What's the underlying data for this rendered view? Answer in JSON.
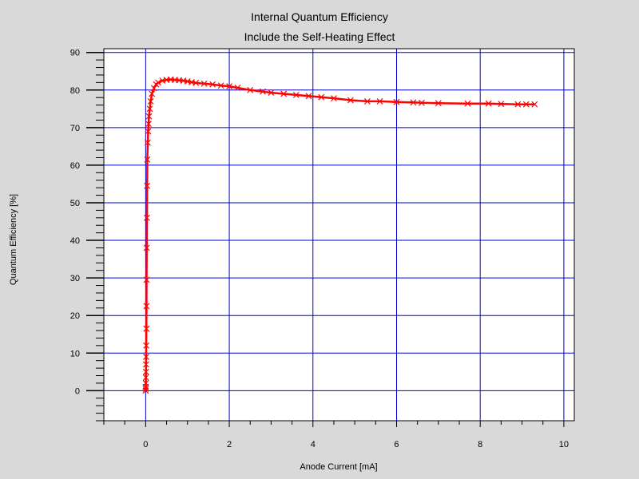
{
  "colors": {
    "background": "#d9d9d9",
    "plot_background": "#ffffff",
    "grid": "#0000cc",
    "series": "#ff0000",
    "axis": "#000000"
  },
  "chart_data": {
    "type": "line",
    "title": "Internal Quantum Efficiency",
    "subtitle": "Include the Self-Heating Effect",
    "xlabel": "Anode Current [mA]",
    "ylabel": "Quantum Efficiency [%]",
    "xlim": [
      -1,
      10.25
    ],
    "ylim": [
      -8,
      91
    ],
    "xticks": [
      0,
      2,
      4,
      6,
      8,
      10
    ],
    "yticks": [
      0,
      10,
      20,
      30,
      40,
      50,
      60,
      70,
      80,
      90
    ],
    "grid": true,
    "marker": "x",
    "series": [
      {
        "x": [
          0,
          0.001,
          0.002,
          0.004,
          0.006,
          0.008,
          0.01,
          0.012,
          0.015,
          0.018,
          0.02,
          0.022,
          0.025,
          0.03,
          0.035,
          0.04,
          0.05,
          0.06,
          0.07,
          0.08,
          0.1,
          0.12,
          0.15,
          0.2,
          0.25,
          0.3,
          0.4,
          0.5,
          0.6,
          0.7,
          0.8,
          0.9,
          1.0,
          1.1,
          1.2,
          1.4,
          1.6,
          1.8,
          2.0,
          2.2,
          2.5,
          2.8,
          3.0,
          3.3,
          3.6,
          3.9,
          4.2,
          4.5,
          4.9,
          5.3,
          5.6,
          6.0,
          6.4,
          6.6,
          7.0,
          7.7,
          8.2,
          8.5,
          8.9,
          9.1,
          9.3
        ],
        "y": [
          0,
          0.5,
          1,
          2,
          3.5,
          5,
          7,
          9,
          12,
          16.5,
          22.5,
          29.5,
          38,
          46,
          54.5,
          61.5,
          66,
          69,
          71,
          73,
          75,
          77,
          79,
          80.5,
          81.5,
          82,
          82.5,
          82.7,
          82.8,
          82.7,
          82.6,
          82.5,
          82.3,
          82.1,
          81.9,
          81.7,
          81.5,
          81.2,
          81,
          80.6,
          80,
          79.6,
          79.3,
          79,
          78.7,
          78.4,
          78.1,
          77.8,
          77.3,
          77,
          77,
          76.8,
          76.7,
          76.6,
          76.5,
          76.4,
          76.4,
          76.3,
          76.2,
          76.2,
          76.2
        ]
      }
    ]
  }
}
